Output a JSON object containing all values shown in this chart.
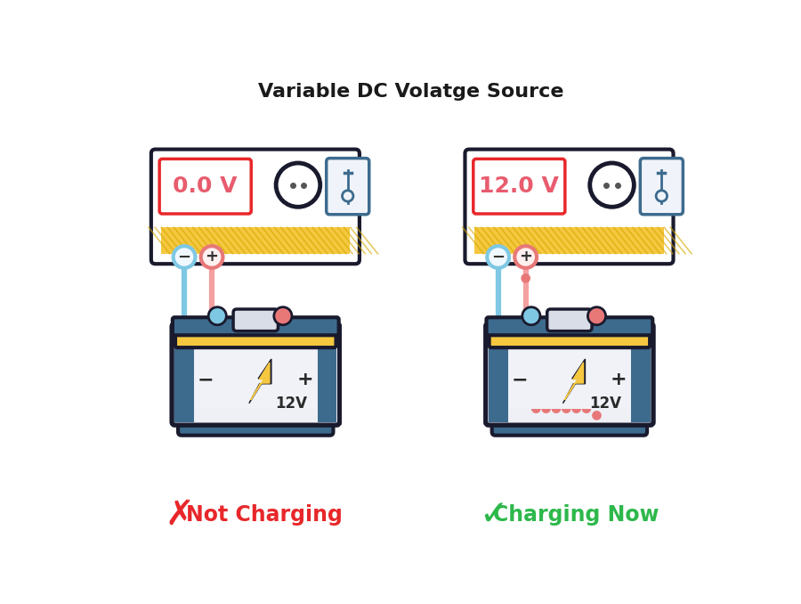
{
  "title": "Variable DC Volatge Source",
  "title_fontsize": 16,
  "bg_color": "#ffffff",
  "left_voltage": "0.0 V",
  "right_voltage": "12.0 V",
  "left_label": "Not Charging",
  "right_label": "Charging Now",
  "left_label_color": "#e8272a",
  "right_label_color": "#2db84b",
  "voltage_color": "#e85c6e",
  "wire_blue": "#7ec8e3",
  "wire_pink": "#f4a0a0",
  "wire_pink_dark": "#e87878",
  "battery_outline": "#1a1a2e",
  "battery_top_yellow": "#f5c840",
  "battery_side_blue": "#3d6b8e",
  "battery_body": "#eef0f5",
  "psu_outline": "#1a1a2e",
  "psu_bg": "#ffffff",
  "psu_stripe_yellow": "#f5c840",
  "psu_stripe_dark": "#d4a800",
  "display_outline": "#e8272a",
  "display_bg": "#ffffff",
  "knob_color": "#1a1a2e",
  "knob_bg": "#ffffff",
  "switch_color": "#3d6b8e",
  "switch_bg": "#f0f4fa",
  "neg_term_color": "#7ec8e3",
  "pos_term_color": "#e87878"
}
